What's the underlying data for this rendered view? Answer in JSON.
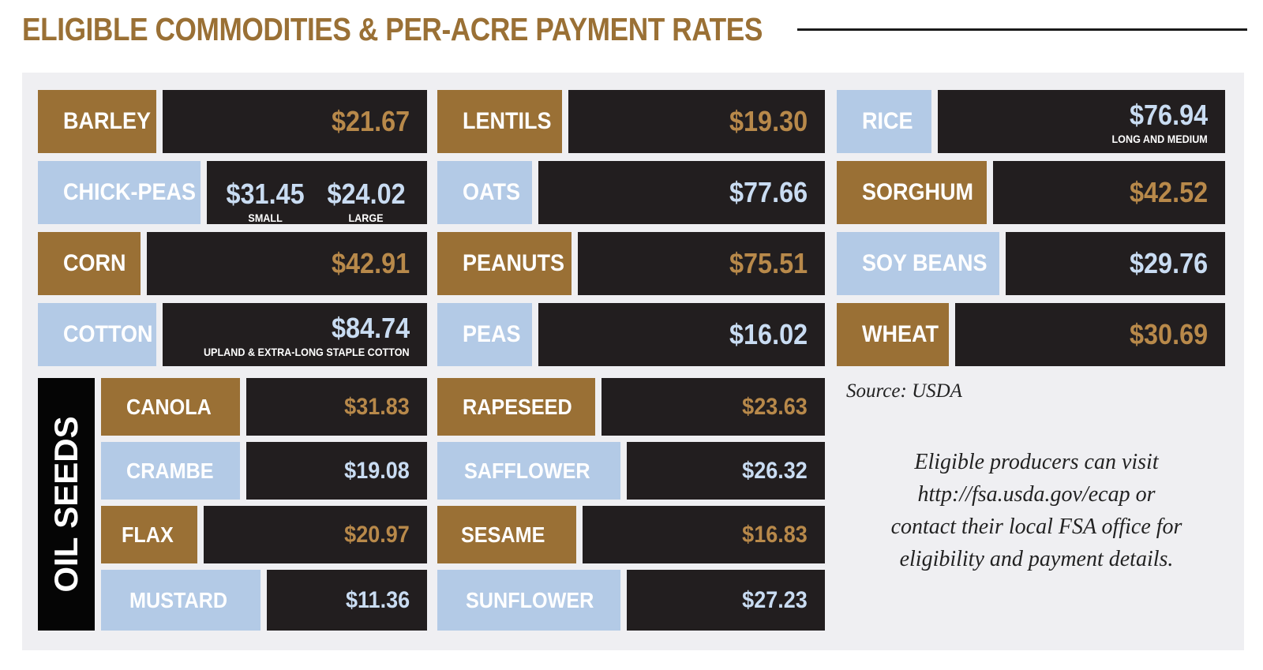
{
  "title": "ELIGIBLE COMMODITIES & PER-ACRE PAYMENT RATES",
  "colors": {
    "gold": "#9a7035",
    "light_blue": "#b3cae6",
    "dark": "#221e1f",
    "panel": "#efeff2"
  },
  "commodities": {
    "barley": {
      "name": "BARLEY",
      "rate": "$21.67"
    },
    "chickpeas": {
      "name": "CHICK-PEAS",
      "small_rate": "$31.45",
      "small_label": "SMALL",
      "large_rate": "$24.02",
      "large_label": "LARGE"
    },
    "corn": {
      "name": "CORN",
      "rate": "$42.91"
    },
    "cotton": {
      "name": "COTTON",
      "rate": "$84.74",
      "note": "UPLAND & EXTRA-LONG STAPLE COTTON"
    },
    "lentils": {
      "name": "LENTILS",
      "rate": "$19.30"
    },
    "oats": {
      "name": "OATS",
      "rate": "$77.66"
    },
    "peanuts": {
      "name": "PEANUTS",
      "rate": "$75.51"
    },
    "peas": {
      "name": "PEAS",
      "rate": "$16.02"
    },
    "rice": {
      "name": "RICE",
      "rate": "$76.94",
      "note": "LONG AND MEDIUM"
    },
    "sorghum": {
      "name": "SORGHUM",
      "rate": "$42.52"
    },
    "soybeans": {
      "name": "SOY BEANS",
      "rate": "$29.76"
    },
    "wheat": {
      "name": "WHEAT",
      "rate": "$30.69"
    }
  },
  "oil_seeds": {
    "heading": "OIL SEEDS",
    "canola": {
      "name": "CANOLA",
      "rate": "$31.83"
    },
    "crambe": {
      "name": "CRAMBE",
      "rate": "$19.08"
    },
    "flax": {
      "name": "FLAX",
      "rate": "$20.97"
    },
    "mustard": {
      "name": "MUSTARD",
      "rate": "$11.36"
    },
    "rapeseed": {
      "name": "RAPESEED",
      "rate": "$23.63"
    },
    "safflower": {
      "name": "SAFFLOWER",
      "rate": "$26.32"
    },
    "sesame": {
      "name": "SESAME",
      "rate": "$16.83"
    },
    "sunflower": {
      "name": "SUNFLOWER",
      "rate": "$27.23"
    }
  },
  "source": "Source: USDA",
  "note_lines": [
    "Eligible producers can visit",
    "http://fsa.usda.gov/ecap  or",
    "contact their local FSA office for",
    "eligibility and payment details."
  ]
}
